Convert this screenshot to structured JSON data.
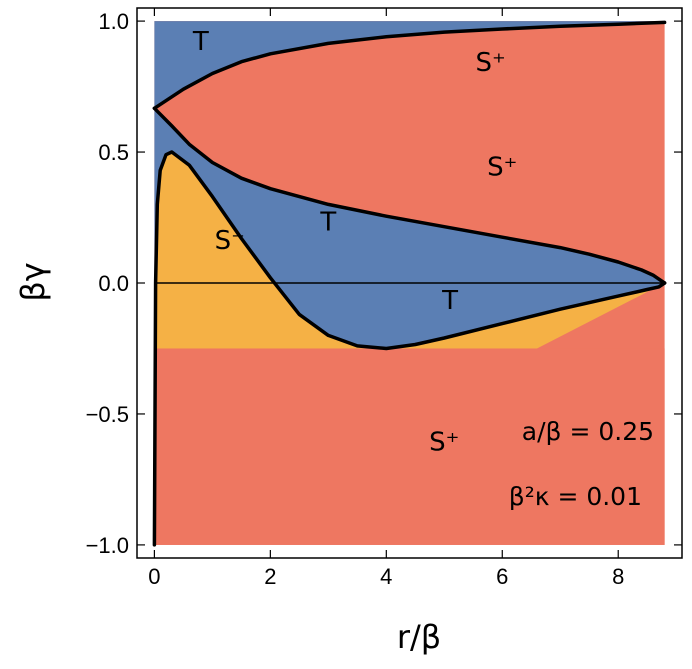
{
  "chart_data": {
    "type": "area",
    "title": "",
    "xlabel": "r/β",
    "ylabel": "βγ",
    "xlim": [
      -0.3,
      9.1
    ],
    "ylim": [
      -1.05,
      1.05
    ],
    "xticks": [
      0,
      2,
      4,
      6,
      8
    ],
    "yticks": [
      1.0,
      0.5,
      0.0,
      -0.5,
      -1.0
    ],
    "xtick_labels": [
      "0",
      "2",
      "4",
      "6",
      "8"
    ],
    "ytick_labels": [
      "1.0",
      "0.5",
      "0.0",
      "−0.5",
      "−1.0"
    ],
    "grid": false,
    "colors": {
      "T": "#5b7fb4",
      "S_plus": "#ee7761",
      "S_minus": "#f5b145",
      "boundary": "#000000"
    },
    "region_labels": [
      {
        "text": "T",
        "x": 0.8,
        "y": 0.89
      },
      {
        "text": "S⁺",
        "x": 5.8,
        "y": 0.81
      },
      {
        "text": "S⁺",
        "x": 6.0,
        "y": 0.41
      },
      {
        "text": "T",
        "x": 3.0,
        "y": 0.2
      },
      {
        "text": "S⁻",
        "x": 1.3,
        "y": 0.13
      },
      {
        "text": "T",
        "x": 5.1,
        "y": -0.1
      },
      {
        "text": "S⁺",
        "x": 5.0,
        "y": -0.64
      }
    ],
    "annotations": [
      "a/β = 0.25",
      "β²κ = 0.01"
    ],
    "series": [
      {
        "x": [
          0.0,
          0.5,
          1.0,
          1.5,
          2.0,
          3.0,
          4.0,
          5.0,
          6.0,
          7.0,
          8.0,
          8.8
        ],
        "y": [
          0.667,
          0.74,
          0.8,
          0.845,
          0.875,
          0.915,
          0.94,
          0.958,
          0.97,
          0.98,
          0.988,
          0.995
        ]
      },
      {
        "x": [
          0.0,
          0.3,
          0.6,
          1.0,
          1.5,
          2.0,
          3.0,
          4.0,
          5.0,
          6.0,
          7.0,
          7.5,
          8.0,
          8.4,
          8.6,
          8.7,
          8.8
        ],
        "y": [
          0.667,
          0.6,
          0.53,
          0.46,
          0.4,
          0.36,
          0.3,
          0.255,
          0.215,
          0.175,
          0.135,
          0.11,
          0.08,
          0.05,
          0.03,
          0.015,
          0.0
        ]
      },
      {
        "x": [
          8.8,
          8.7,
          8.5,
          8.0,
          7.0,
          6.0,
          5.0,
          4.5,
          4.0,
          3.5,
          3.0,
          2.5,
          2.0,
          1.5,
          1.0,
          0.6,
          0.3,
          0.2,
          0.1,
          0.05,
          0.02,
          0.0
        ],
        "y": [
          0.0,
          -0.015,
          -0.025,
          -0.05,
          -0.1,
          -0.155,
          -0.21,
          -0.235,
          -0.25,
          -0.24,
          -0.2,
          -0.12,
          0.02,
          0.17,
          0.33,
          0.45,
          0.5,
          0.49,
          0.43,
          0.3,
          0.0,
          -1.0
        ]
      }
    ]
  }
}
